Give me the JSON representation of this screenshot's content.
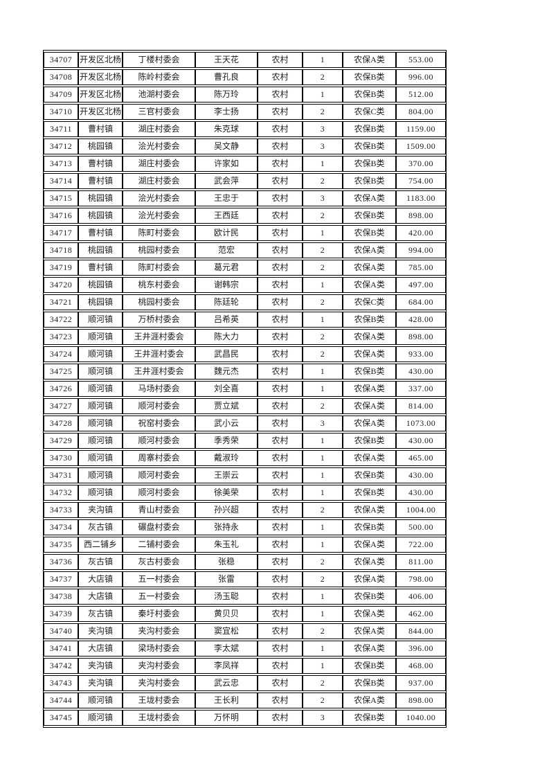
{
  "colors": {
    "page_background": "#ffffff",
    "table_border": "#000000",
    "text": "#1c1c1c"
  },
  "table": {
    "columns_semantic": [
      "serial-number",
      "town",
      "village-committee",
      "person-name",
      "residence-type",
      "count",
      "insurance-category",
      "amount"
    ],
    "rows": [
      [
        "34707",
        "开发区北杨",
        "丁楼村委会",
        "王天花",
        "农村",
        "1",
        "农保A类",
        "553.00"
      ],
      [
        "34708",
        "开发区北杨",
        "陈岭村委会",
        "曹孔良",
        "农村",
        "2",
        "农保B类",
        "996.00"
      ],
      [
        "34709",
        "开发区北杨",
        "池湖村委会",
        "陈万玲",
        "农村",
        "1",
        "农保B类",
        "512.00"
      ],
      [
        "34710",
        "开发区北杨",
        "三官村委会",
        "李士扬",
        "农村",
        "2",
        "农保C类",
        "804.00"
      ],
      [
        "34711",
        "曹村镇",
        "湖庄村委会",
        "朱克球",
        "农村",
        "3",
        "农保B类",
        "1159.00"
      ],
      [
        "34712",
        "桃园镇",
        "浍光村委会",
        "吴文静",
        "农村",
        "3",
        "农保B类",
        "1509.00"
      ],
      [
        "34713",
        "曹村镇",
        "湖庄村委会",
        "许家如",
        "农村",
        "1",
        "农保B类",
        "370.00"
      ],
      [
        "34714",
        "曹村镇",
        "湖庄村委会",
        "武会萍",
        "农村",
        "2",
        "农保B类",
        "754.00"
      ],
      [
        "34715",
        "桃园镇",
        "浍光村委会",
        "王忠于",
        "农村",
        "3",
        "农保A类",
        "1183.00"
      ],
      [
        "34716",
        "桃园镇",
        "浍光村委会",
        "王西廷",
        "农村",
        "2",
        "农保B类",
        "898.00"
      ],
      [
        "34717",
        "曹村镇",
        "陈町村委会",
        "欧计民",
        "农村",
        "1",
        "农保B类",
        "420.00"
      ],
      [
        "34718",
        "桃园镇",
        "桃园村委会",
        "范宏",
        "农村",
        "2",
        "农保A类",
        "994.00"
      ],
      [
        "34719",
        "曹村镇",
        "陈町村委会",
        "葛元君",
        "农村",
        "2",
        "农保A类",
        "785.00"
      ],
      [
        "34720",
        "桃园镇",
        "桃东村委会",
        "谢韩宗",
        "农村",
        "1",
        "农保A类",
        "497.00"
      ],
      [
        "34721",
        "桃园镇",
        "桃园村委会",
        "陈廷轮",
        "农村",
        "2",
        "农保C类",
        "684.00"
      ],
      [
        "34722",
        "顺河镇",
        "万桥村委会",
        "吕希英",
        "农村",
        "1",
        "农保B类",
        "428.00"
      ],
      [
        "34723",
        "顺河镇",
        "王井涯村委会",
        "陈大力",
        "农村",
        "2",
        "农保A类",
        "898.00"
      ],
      [
        "34724",
        "顺河镇",
        "王井涯村委会",
        "武昌民",
        "农村",
        "2",
        "农保A类",
        "933.00"
      ],
      [
        "34725",
        "顺河镇",
        "王井涯村委会",
        "魏元杰",
        "农村",
        "1",
        "农保B类",
        "430.00"
      ],
      [
        "34726",
        "顺河镇",
        "马场村委会",
        "刘全喜",
        "农村",
        "1",
        "农保A类",
        "337.00"
      ],
      [
        "34727",
        "顺河镇",
        "顺河村委会",
        "贾立斌",
        "农村",
        "2",
        "农保A类",
        "814.00"
      ],
      [
        "34728",
        "顺河镇",
        "祝窑村委会",
        "武小云",
        "农村",
        "3",
        "农保A类",
        "1073.00"
      ],
      [
        "34729",
        "顺河镇",
        "顺河村委会",
        "季秀荣",
        "农村",
        "1",
        "农保B类",
        "430.00"
      ],
      [
        "34730",
        "顺河镇",
        "周寨村委会",
        "戴淑玲",
        "农村",
        "1",
        "农保A类",
        "465.00"
      ],
      [
        "34731",
        "顺河镇",
        "顺河村委会",
        "王崇云",
        "农村",
        "1",
        "农保B类",
        "430.00"
      ],
      [
        "34732",
        "顺河镇",
        "顺河村委会",
        "徐美荣",
        "农村",
        "1",
        "农保B类",
        "430.00"
      ],
      [
        "34733",
        "夹沟镇",
        "青山村委会",
        "孙兴超",
        "农村",
        "2",
        "农保A类",
        "1004.00"
      ],
      [
        "34734",
        "灰古镇",
        "碾盘村委会",
        "张持永",
        "农村",
        "1",
        "农保B类",
        "500.00"
      ],
      [
        "34735",
        "西二铺乡",
        "二铺村委会",
        "朱玉礼",
        "农村",
        "1",
        "农保A类",
        "722.00"
      ],
      [
        "34736",
        "灰古镇",
        "灰古村委会",
        "张稳",
        "农村",
        "2",
        "农保A类",
        "811.00"
      ],
      [
        "34737",
        "大店镇",
        "五一村委会",
        "张雷",
        "农村",
        "2",
        "农保A类",
        "798.00"
      ],
      [
        "34738",
        "大店镇",
        "五一村委会",
        "汤玉聪",
        "农村",
        "1",
        "农保B类",
        "406.00"
      ],
      [
        "34739",
        "灰古镇",
        "秦圩村委会",
        "黄贝贝",
        "农村",
        "1",
        "农保A类",
        "462.00"
      ],
      [
        "34740",
        "夹沟镇",
        "夹沟村委会",
        "窦宜松",
        "农村",
        "2",
        "农保A类",
        "844.00"
      ],
      [
        "34741",
        "大店镇",
        "梁场村委会",
        "李太斌",
        "农村",
        "1",
        "农保A类",
        "396.00"
      ],
      [
        "34742",
        "夹沟镇",
        "夹沟村委会",
        "李凤祥",
        "农村",
        "1",
        "农保B类",
        "468.00"
      ],
      [
        "34743",
        "夹沟镇",
        "夹沟村委会",
        "武云忠",
        "农村",
        "2",
        "农保B类",
        "937.00"
      ],
      [
        "34744",
        "顺河镇",
        "王垅村委会",
        "王长利",
        "农村",
        "2",
        "农保A类",
        "898.00"
      ],
      [
        "34745",
        "顺河镇",
        "王垅村委会",
        "万怀明",
        "农村",
        "3",
        "农保B类",
        "1040.00"
      ]
    ]
  }
}
